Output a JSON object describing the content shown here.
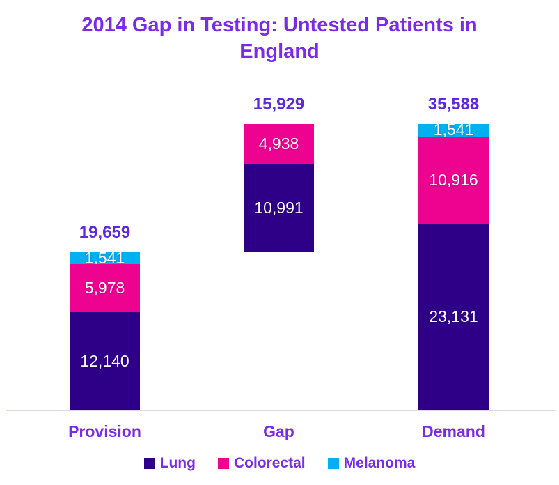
{
  "chart_data": {
    "type": "bar",
    "subtype": "stacked-waterfall",
    "title": "2014 Gap in Testing: Untested Patients in England",
    "categories": [
      "Provision",
      "Gap",
      "Demand"
    ],
    "series": [
      {
        "name": "Lung",
        "color": "#2E0087",
        "values": [
          12140,
          10991,
          23131
        ]
      },
      {
        "name": "Colorectal",
        "color": "#EE0290",
        "values": [
          5978,
          4938,
          10916
        ]
      },
      {
        "name": "Melanoma",
        "color": "#00B0F0",
        "values": [
          1541,
          0,
          1541
        ]
      }
    ],
    "series_colors": {
      "Lung": "#2E0087",
      "Colorectal": "#EE0290",
      "Melanoma": "#00B0F0"
    },
    "totals": [
      19659,
      15929,
      35588
    ],
    "total_labels": [
      "19,659",
      "15,929",
      "35,588"
    ],
    "axis_max": 35588,
    "gridlines": false,
    "y_axis_visible": false,
    "legend_position": "bottom",
    "waterfall_note": "Gap bar floats: it starts at the top of Provision (19,659) and ends at the Demand total (35,588)",
    "bars": [
      {
        "category": "Provision",
        "base": 0,
        "total_label": "19,659",
        "segments": [
          {
            "series": "Lung",
            "value": 12140,
            "label": "12,140"
          },
          {
            "series": "Colorectal",
            "value": 5978,
            "label": "5,978"
          },
          {
            "series": "Melanoma",
            "value": 1541,
            "label": "1,541"
          }
        ]
      },
      {
        "category": "Gap",
        "base": 19659,
        "total_label": "15,929",
        "segments": [
          {
            "series": "Lung",
            "value": 10991,
            "label": "10,991"
          },
          {
            "series": "Colorectal",
            "value": 4938,
            "label": "4,938"
          }
        ]
      },
      {
        "category": "Demand",
        "base": 0,
        "total_label": "35,588",
        "segments": [
          {
            "series": "Lung",
            "value": 23131,
            "label": "23,131"
          },
          {
            "series": "Colorectal",
            "value": 10916,
            "label": "10,916"
          },
          {
            "series": "Melanoma",
            "value": 1541,
            "label": "1,541"
          }
        ]
      }
    ]
  },
  "legend": {
    "items": [
      {
        "label": "Lung",
        "color": "#2E0087"
      },
      {
        "label": "Colorectal",
        "color": "#EE0290"
      },
      {
        "label": "Melanoma",
        "color": "#00B0F0"
      }
    ]
  },
  "colors": {
    "title_purple": "#7A2BE8",
    "total_purple": "#5E28DE",
    "category_purple": "#7A2BE8",
    "axis_line": "#DFD8F0",
    "segment_text": "#FFFFFF",
    "background": "#FFFFFF"
  }
}
